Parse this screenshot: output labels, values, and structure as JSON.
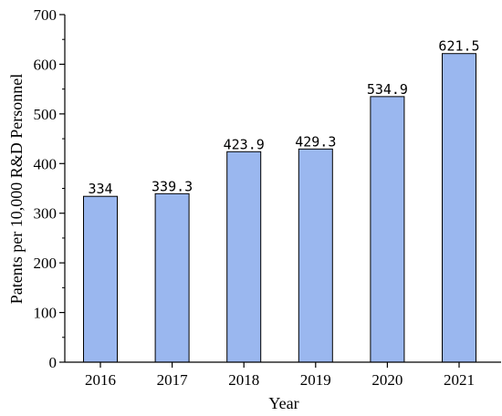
{
  "chart_data": {
    "type": "bar",
    "categories": [
      "2016",
      "2017",
      "2018",
      "2019",
      "2020",
      "2021"
    ],
    "values": [
      334,
      339.3,
      423.9,
      429.3,
      534.9,
      621.5
    ],
    "data_labels": [
      "334",
      "339.3",
      "423.9",
      "429.3",
      "534.9",
      "621.5"
    ],
    "xlabel": "Year",
    "ylabel": "Patents per 10,000 R&D Personnel",
    "ylim": [
      0,
      700
    ],
    "yticks": [
      0,
      100,
      200,
      300,
      400,
      500,
      600,
      700
    ],
    "grid": false,
    "bar_color": "#9ab7ef",
    "bar_edge_color": "#000000"
  }
}
